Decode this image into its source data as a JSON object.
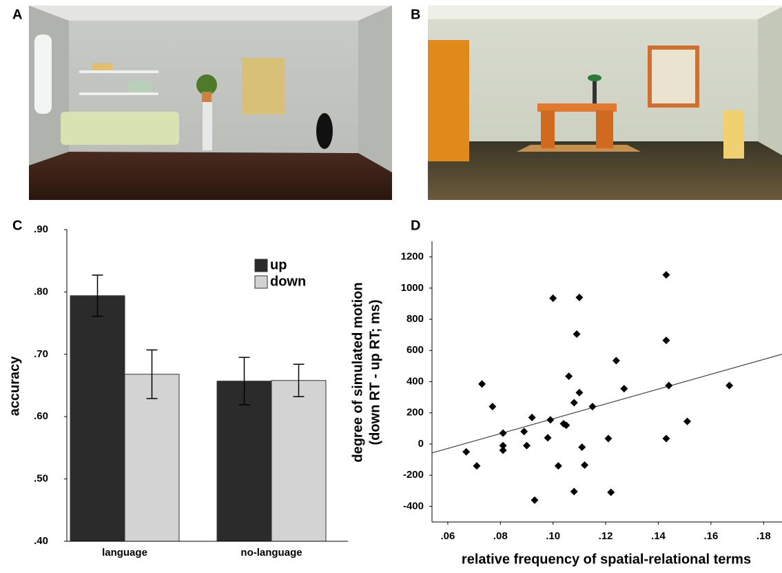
{
  "images": [
    {
      "label": "A"
    },
    {
      "label": "B"
    }
  ],
  "chart_data": [
    {
      "type": "bar",
      "panel": "C",
      "ylabel": "accuracy",
      "categories": [
        "language",
        "no-language"
      ],
      "series": [
        {
          "name": "up",
          "color": "#2b2b2b",
          "values": [
            0.794,
            0.657
          ],
          "errors": [
            0.033,
            0.038
          ]
        },
        {
          "name": "down",
          "color": "#d3d3d3",
          "values": [
            0.668,
            0.658
          ],
          "errors": [
            0.039,
            0.026
          ]
        }
      ],
      "ylim": [
        0.4,
        0.9
      ],
      "yticks": [
        {
          "value": 0.4,
          "label": ".40"
        },
        {
          "value": 0.5,
          "label": ".50"
        },
        {
          "value": 0.6,
          "label": ".60"
        },
        {
          "value": 0.7,
          "label": ".70"
        },
        {
          "value": 0.8,
          "label": ".80"
        },
        {
          "value": 0.9,
          "label": ".90"
        }
      ],
      "legend": "upper-right"
    },
    {
      "type": "scatter",
      "panel": "D",
      "ylabel": [
        "degree of simulated motion",
        "(down RT - up RT; ms)"
      ],
      "xlabel": "relative frequency of spatial-relational terms",
      "color": "#000000",
      "x": [
        0.067,
        0.071,
        0.073,
        0.077,
        0.081,
        0.081,
        0.081,
        0.089,
        0.09,
        0.092,
        0.093,
        0.098,
        0.099,
        0.1,
        0.102,
        0.104,
        0.105,
        0.106,
        0.108,
        0.108,
        0.109,
        0.11,
        0.11,
        0.111,
        0.112,
        0.115,
        0.121,
        0.122,
        0.124,
        0.127,
        0.143,
        0.143,
        0.143,
        0.144,
        0.151,
        0.167
      ],
      "values": [
        -50,
        -140,
        385,
        240,
        70,
        -10,
        -40,
        80,
        -10,
        170,
        -360,
        40,
        155,
        935,
        -140,
        130,
        120,
        435,
        265,
        -305,
        705,
        940,
        330,
        -20,
        -135,
        240,
        35,
        -310,
        535,
        355,
        1085,
        665,
        35,
        375,
        145,
        375
      ],
      "fit": {
        "x": [
          0.054,
          0.187
        ],
        "y": [
          -57,
          576
        ]
      },
      "xlim": [
        0.054,
        0.187
      ],
      "ylim": [
        -500,
        1300
      ],
      "xticks": [
        {
          "value": 0.06,
          "label": ".06"
        },
        {
          "value": 0.08,
          "label": ".08"
        },
        {
          "value": 0.1,
          "label": ".10"
        },
        {
          "value": 0.12,
          "label": ".12"
        },
        {
          "value": 0.14,
          "label": ".14"
        },
        {
          "value": 0.16,
          "label": ".16"
        },
        {
          "value": 0.18,
          "label": ".18"
        }
      ],
      "yticks": [
        -400,
        -200,
        0,
        200,
        400,
        600,
        800,
        1000,
        1200
      ]
    }
  ]
}
